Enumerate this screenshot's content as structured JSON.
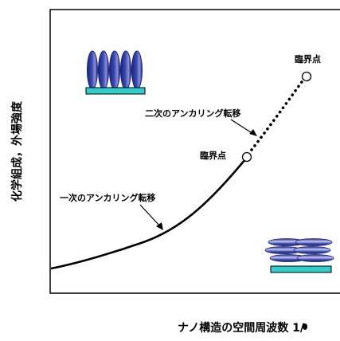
{
  "diagram": {
    "y_axis_label": "化学組成，外場強度",
    "x_axis_label": "ナノ構造の空間周波数 1/",
    "x_axis_symbol": "bullet",
    "annotations": {
      "critical_point_upper": "臨界点",
      "critical_point_middle": "臨界点",
      "secondary_transition": "二次のアンカリング転移",
      "primary_transition": "一次のアンカリング転移"
    },
    "icons": {
      "top_left": "vertically-aligned-molecules-on-substrate-icon",
      "bottom_right": "horizontally-aligned-molecules-on-substrate-icon"
    },
    "colors": {
      "molecule_fill": "#1a237e",
      "molecule_highlight": "#8a8fd6",
      "substrate_fill": "#33cccc",
      "curve": "#000000"
    }
  }
}
